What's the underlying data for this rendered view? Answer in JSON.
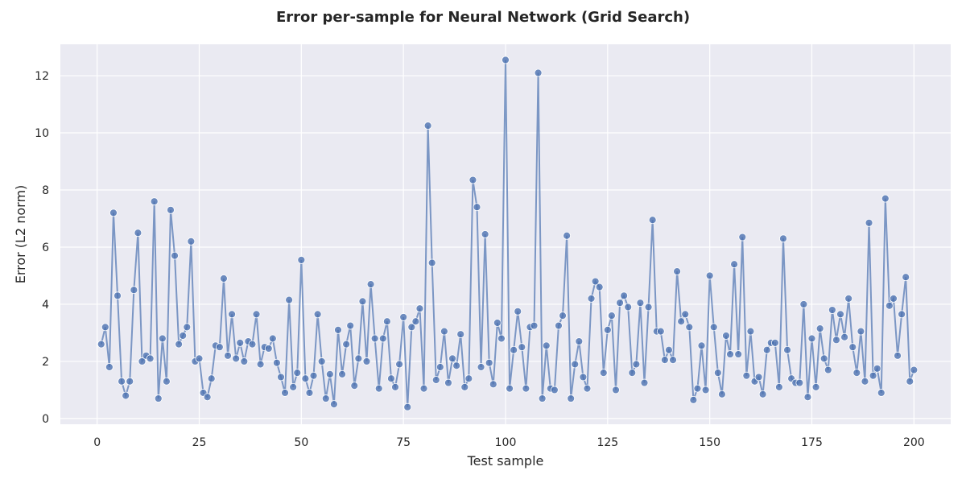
{
  "chart_data": {
    "type": "line",
    "title": "Error per-sample for Neural Network (Grid Search)",
    "xlabel": "Test sample",
    "ylabel": "Error (L2 norm)",
    "xlim": [
      -9,
      209
    ],
    "ylim": [
      -0.2,
      13.1
    ],
    "xticks": [
      0,
      25,
      50,
      75,
      100,
      125,
      150,
      175,
      200
    ],
    "yticks": [
      0,
      2,
      4,
      6,
      8,
      10,
      12
    ],
    "grid": true,
    "legend": "none",
    "colors": {
      "series": "#4c72b0",
      "background": "#eaeaf2",
      "grid": "#ffffff"
    },
    "series": [
      {
        "x": [
          1,
          2,
          3,
          4,
          5,
          6,
          7,
          8,
          9,
          10,
          11,
          12,
          13,
          14,
          15,
          16,
          17,
          18,
          19,
          20,
          21,
          22,
          23,
          24,
          25,
          26,
          27,
          28,
          29,
          30,
          31,
          32,
          33,
          34,
          35,
          36,
          37,
          38,
          39,
          40,
          41,
          42,
          43,
          44,
          45,
          46,
          47,
          48,
          49,
          50,
          51,
          52,
          53,
          54,
          55,
          56,
          57,
          58,
          59,
          60,
          61,
          62,
          63,
          64,
          65,
          66,
          67,
          68,
          69,
          70,
          71,
          72,
          73,
          74,
          75,
          76,
          77,
          78,
          79,
          80,
          81,
          82,
          83,
          84,
          85,
          86,
          87,
          88,
          89,
          90,
          91,
          92,
          93,
          94,
          95,
          96,
          97,
          98,
          99,
          100,
          101,
          102,
          103,
          104,
          105,
          106,
          107,
          108,
          109,
          110,
          111,
          112,
          113,
          114,
          115,
          116,
          117,
          118,
          119,
          120,
          121,
          122,
          123,
          124,
          125,
          126,
          127,
          128,
          129,
          130,
          131,
          132,
          133,
          134,
          135,
          136,
          137,
          138,
          139,
          140,
          141,
          142,
          143,
          144,
          145,
          146,
          147,
          148,
          149,
          150,
          151,
          152,
          153,
          154,
          155,
          156,
          157,
          158,
          159,
          160,
          161,
          162,
          163,
          164,
          165,
          166,
          167,
          168,
          169,
          170,
          171,
          172,
          173,
          174,
          175,
          176,
          177,
          178,
          179,
          180,
          181,
          182,
          183,
          184,
          185,
          186,
          187,
          188,
          189,
          190,
          191,
          192,
          193,
          194,
          195,
          196,
          197,
          198,
          199,
          200
        ],
        "y": [
          2.6,
          3.2,
          1.8,
          7.2,
          4.3,
          1.3,
          0.8,
          1.3,
          4.5,
          6.5,
          2.0,
          2.2,
          2.1,
          7.6,
          0.7,
          2.8,
          1.3,
          7.3,
          5.7,
          2.6,
          2.9,
          3.2,
          6.2,
          2.0,
          2.1,
          0.9,
          0.75,
          1.4,
          2.55,
          2.5,
          4.9,
          2.2,
          3.65,
          2.1,
          2.65,
          2.0,
          2.7,
          2.6,
          3.65,
          1.9,
          2.5,
          2.45,
          2.8,
          1.95,
          1.45,
          0.9,
          4.15,
          1.1,
          1.6,
          5.55,
          1.4,
          0.9,
          1.5,
          3.65,
          2.0,
          0.7,
          1.55,
          0.5,
          3.1,
          1.55,
          2.6,
          3.25,
          1.15,
          2.1,
          4.1,
          2.0,
          4.7,
          2.8,
          1.05,
          2.8,
          3.4,
          1.4,
          1.1,
          1.9,
          3.55,
          0.4,
          3.2,
          3.4,
          3.85,
          1.05,
          10.25,
          5.45,
          1.35,
          1.8,
          3.05,
          1.25,
          2.1,
          1.85,
          2.95,
          1.1,
          1.4,
          8.35,
          7.4,
          1.8,
          6.45,
          1.95,
          1.2,
          3.35,
          2.8,
          12.55,
          1.05,
          2.4,
          3.75,
          2.5,
          1.05,
          3.2,
          3.25,
          12.1,
          0.7,
          2.55,
          1.05,
          1.0,
          3.25,
          3.6,
          6.4,
          0.7,
          1.9,
          2.7,
          1.45,
          1.05,
          4.2,
          4.8,
          4.6,
          1.6,
          3.1,
          3.6,
          1.0,
          4.05,
          4.3,
          3.9,
          1.6,
          1.9,
          4.05,
          1.25,
          3.9,
          6.95,
          3.05,
          3.05,
          2.05,
          2.4,
          2.05,
          5.15,
          3.4,
          3.65,
          3.2,
          0.65,
          1.05,
          2.55,
          1.0,
          5.0,
          3.2,
          1.6,
          0.85,
          2.9,
          2.25,
          5.4,
          2.25,
          6.35,
          1.5,
          3.05,
          1.3,
          1.45,
          0.85,
          2.4,
          2.65,
          2.65,
          1.1,
          6.3,
          2.4,
          1.4,
          1.25,
          1.25,
          4.0,
          0.75,
          2.8,
          1.1,
          3.15,
          2.1,
          1.7,
          3.8,
          2.75,
          3.65,
          2.85,
          4.2,
          2.5,
          1.6,
          3.05,
          1.3,
          6.85,
          1.5,
          1.75,
          0.9,
          7.7,
          3.95,
          4.2,
          2.2,
          3.65,
          4.95,
          1.3,
          1.7
        ]
      }
    ]
  }
}
